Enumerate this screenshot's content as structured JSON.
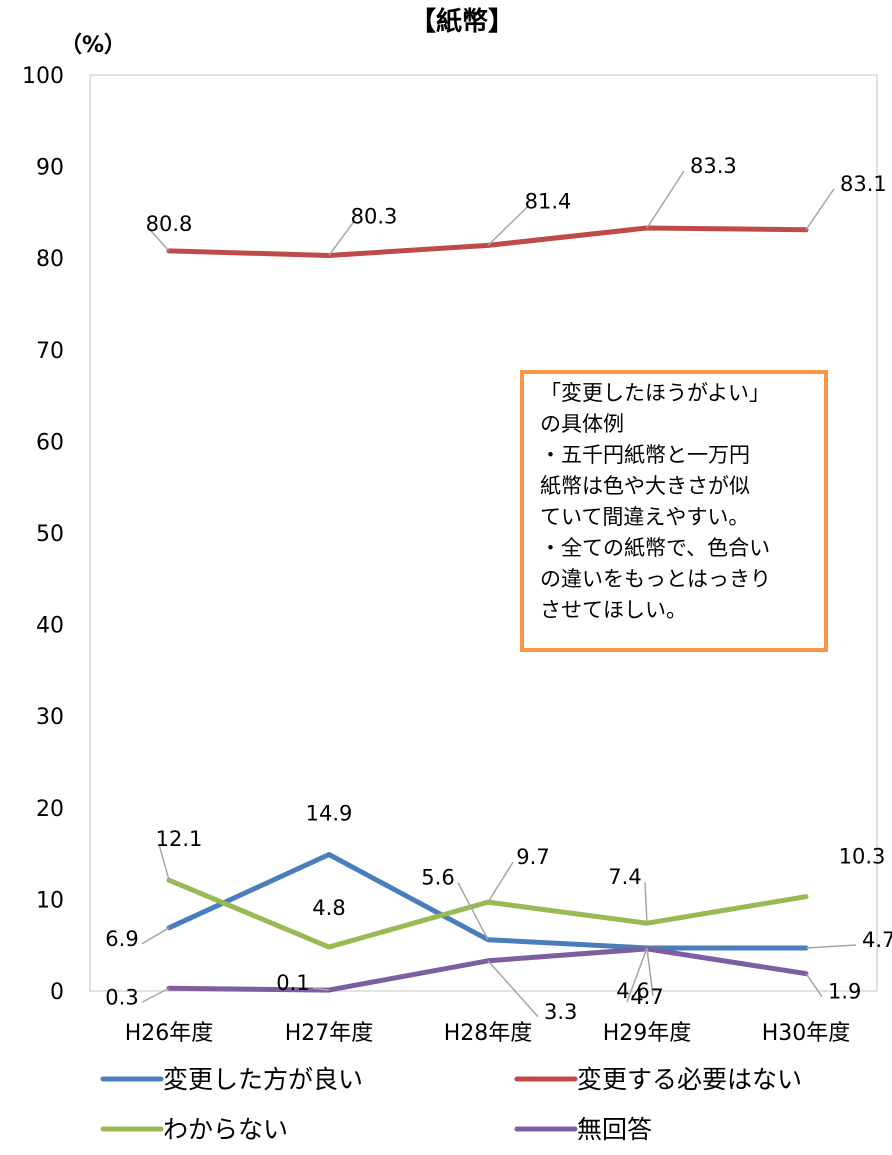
{
  "chart_data": {
    "type": "line",
    "title": "【紙幣】",
    "unit_label": "（%）",
    "ylim": [
      0,
      100
    ],
    "yticks": [
      "0",
      "10",
      "20",
      "30",
      "40",
      "50",
      "60",
      "70",
      "80",
      "90",
      "100"
    ],
    "categories": [
      "H26年度",
      "H27年度",
      "H28年度",
      "H29年度",
      "H30年度"
    ],
    "grid": false,
    "legend_position": "bottom",
    "series": [
      {
        "name": "変更した方が良い",
        "color": "#4a7ebb",
        "values": [
          6.9,
          14.9,
          5.6,
          4.7,
          4.7
        ],
        "labels": [
          "6.9",
          "14.9",
          "5.6",
          "4.7",
          "4.7"
        ]
      },
      {
        "name": "変更する必要はない",
        "color": "#be4b48",
        "values": [
          80.8,
          80.3,
          81.4,
          83.3,
          83.1
        ],
        "labels": [
          "80.8",
          "80.3",
          "81.4",
          "83.3",
          "83.1"
        ]
      },
      {
        "name": "わからない",
        "color": "#98b954",
        "values": [
          12.1,
          4.8,
          9.7,
          7.4,
          10.3
        ],
        "labels": [
          "12.1",
          "4.8",
          "9.7",
          "7.4",
          "10.3"
        ]
      },
      {
        "name": "無回答",
        "color": "#7d5fa0",
        "values": [
          0.3,
          0.1,
          3.3,
          4.6,
          1.9
        ],
        "labels": [
          "0.3",
          "0.1",
          "3.3",
          "4.6",
          "1.9"
        ]
      }
    ],
    "annotation": {
      "lines": [
        "「変更したほうがよい」",
        "の具体例",
        "・五千円紙幣と一万円",
        "紙幣は色や大きさが似",
        "ていて間違えやすい。",
        "・全ての紙幣で、色合い",
        "の違いをもっとはっきり",
        "させてほしい。"
      ],
      "border_color": "#f79646"
    },
    "axis_color": "#d9d9d9"
  }
}
